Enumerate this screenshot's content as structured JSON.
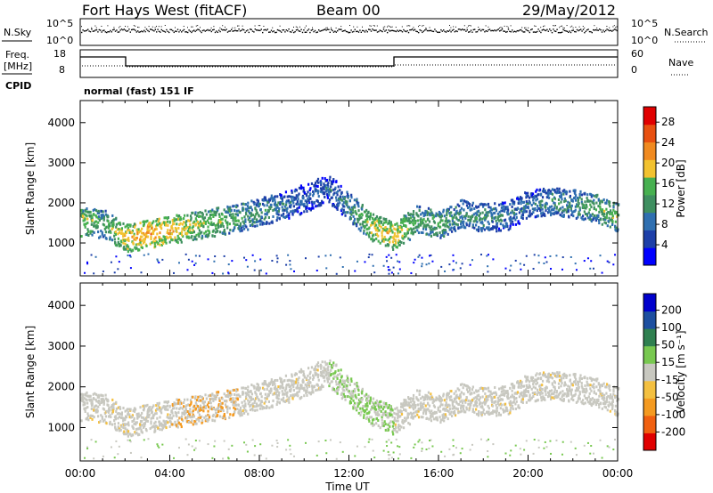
{
  "header": {
    "station": "Fort Hays West (fitACF)",
    "beam": "Beam 00",
    "date": "29/May/2012"
  },
  "noise_panel": {
    "left_label": "N.Sky",
    "left_ticks": [
      "10^5",
      "10^0"
    ],
    "right_ticks": [
      "10^5",
      "10^0"
    ],
    "right_label": "N.Search"
  },
  "freq_panel": {
    "left_label_line1": "Freq.",
    "left_label_line2": "[MHz]",
    "left_ticks": [
      "18",
      "8"
    ],
    "right_ticks": [
      "60",
      "0"
    ],
    "right_label": "Nave",
    "cpid_label": "CPID",
    "cpid_text": "normal (fast) 151 IF"
  },
  "colors": {
    "power_scale": [
      "#0000ff",
      "#1d3fa8",
      "#2f6fb0",
      "#3f8f60",
      "#47b050",
      "#f2c230",
      "#f08a20",
      "#e85010",
      "#e00000"
    ],
    "velocity_scale": [
      "#e00000",
      "#f06010",
      "#f49a20",
      "#f4c040",
      "#c8c8c0",
      "#78c850",
      "#2f8050",
      "#1d4fa0",
      "#0000cc"
    ]
  },
  "chart_data": [
    {
      "type": "heatmap",
      "title": "Power",
      "ylabel": "Slant Range [km]",
      "xlabel": "Time UT",
      "x_ticks": [
        "00:00",
        "04:00",
        "08:00",
        "12:00",
        "16:00",
        "20:00",
        "00:00"
      ],
      "y_ticks": [
        "1000",
        "2000",
        "3000",
        "4000"
      ],
      "ylim": [
        180,
        4550
      ],
      "xlim_hours": [
        0,
        24
      ],
      "colorbar_label": "Power [dB]",
      "colorbar_ticks": [
        "4",
        "8",
        "12",
        "16",
        "20",
        "24",
        "28"
      ],
      "colorbar_range": [
        0,
        31
      ],
      "echo_band": {
        "hours": [
          0,
          1,
          2,
          3,
          4,
          5,
          6,
          7,
          8,
          9,
          10,
          11,
          12,
          13,
          14,
          15,
          16,
          17,
          18,
          19,
          20,
          21,
          22,
          23,
          24
        ],
        "center_km": [
          1550,
          1500,
          1150,
          1250,
          1350,
          1450,
          1550,
          1650,
          1800,
          1950,
          2150,
          2400,
          1900,
          1400,
          1200,
          1600,
          1500,
          1750,
          1650,
          1700,
          2000,
          2050,
          2000,
          1900,
          1650
        ],
        "peak_db": [
          18,
          14,
          20,
          22,
          20,
          18,
          16,
          14,
          12,
          10,
          8,
          8,
          12,
          18,
          20,
          14,
          14,
          12,
          12,
          10,
          10,
          12,
          12,
          14,
          16
        ]
      }
    },
    {
      "type": "heatmap",
      "title": "Velocity",
      "ylabel": "Slant Range [km]",
      "xlabel": "Time UT",
      "x_ticks": [
        "00:00",
        "04:00",
        "08:00",
        "12:00",
        "16:00",
        "20:00",
        "00:00"
      ],
      "y_ticks": [
        "1000",
        "2000",
        "3000",
        "4000"
      ],
      "ylim": [
        180,
        4550
      ],
      "xlim_hours": [
        0,
        24
      ],
      "colorbar_label": "Velocity [m s⁻¹]",
      "colorbar_ticks": [
        "200",
        "100",
        "50",
        "15",
        "-15",
        "-50",
        "-100",
        "-200"
      ],
      "dominant_velocity_ms": 0
    }
  ]
}
